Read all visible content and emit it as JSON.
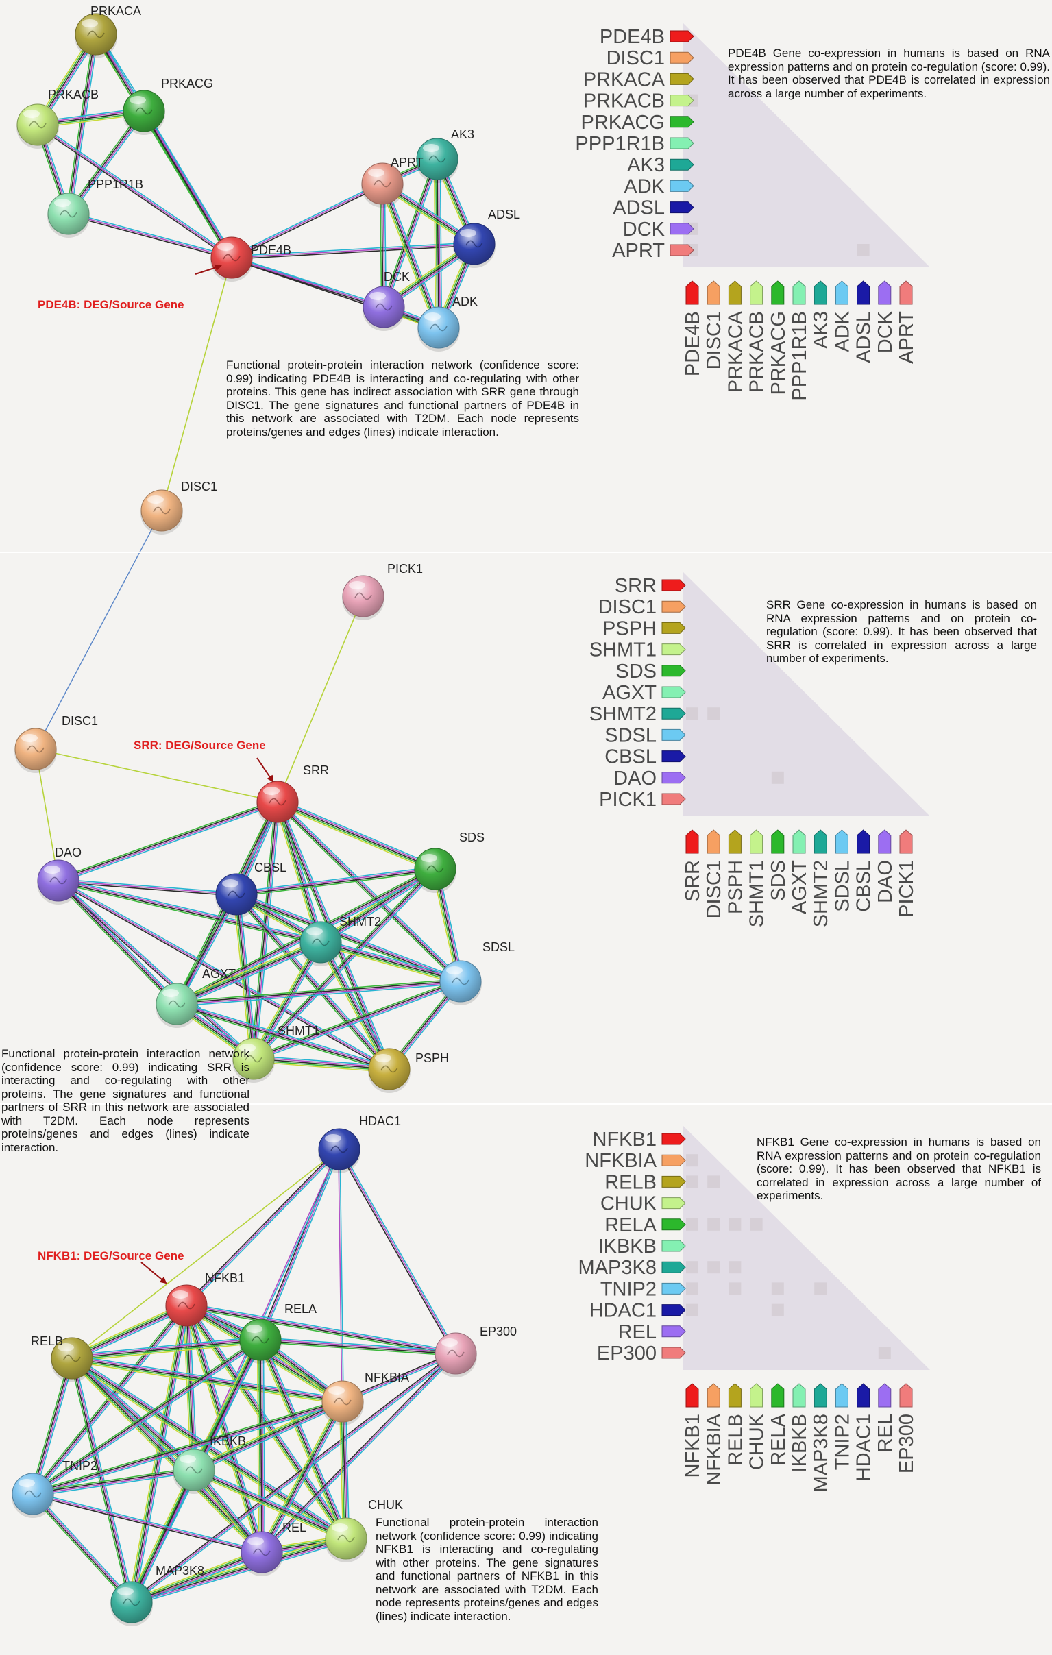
{
  "colors": {
    "background": "#f4f3f1",
    "matrix": "#e2dde6",
    "cell": "#d6cfd6",
    "callout": "#e01e1e"
  },
  "panels": [
    {
      "id": "pde4b",
      "network": {
        "nodes": [
          {
            "name": "PRKACA",
            "color": "#b0a640"
          },
          {
            "name": "PRKACB",
            "color": "#c2e67c"
          },
          {
            "name": "PRKACG",
            "color": "#3fae3f"
          },
          {
            "name": "PPP1R1B",
            "color": "#8ee0b0"
          },
          {
            "name": "PDE4B",
            "color": "#e84a4a"
          },
          {
            "name": "AK3",
            "color": "#3fb3a0"
          },
          {
            "name": "APRT",
            "color": "#e89a8a"
          },
          {
            "name": "ADSL",
            "color": "#3346b0"
          },
          {
            "name": "DCK",
            "color": "#9070e0"
          },
          {
            "name": "ADK",
            "color": "#7ec4ef"
          },
          {
            "name": "DISC1",
            "color": "#f0b482"
          }
        ],
        "callout": "PDE4B: DEG/Source Gene",
        "caption": "Functional protein-protein interaction network (confidence score: 0.99) indicating PDE4B is interacting and co-regulating with other proteins. This gene has indirect association with SRR gene through DISC1. The gene signatures and functional partners of PDE4B in this network are associated with T2DM. Each node represents proteins/genes and edges (lines) indicate interaction."
      },
      "matrix": {
        "genes": [
          {
            "name": "PDE4B",
            "color": "#ee1c1c"
          },
          {
            "name": "DISC1",
            "color": "#f6a062"
          },
          {
            "name": "PRKACA",
            "color": "#b4a41e"
          },
          {
            "name": "PRKACB",
            "color": "#c4f28c"
          },
          {
            "name": "PRKACG",
            "color": "#2cb82c"
          },
          {
            "name": "PPP1R1B",
            "color": "#84f0b2"
          },
          {
            "name": "AK3",
            "color": "#1ea896"
          },
          {
            "name": "ADK",
            "color": "#6ccaf2"
          },
          {
            "name": "ADSL",
            "color": "#1a1aa6"
          },
          {
            "name": "DCK",
            "color": "#9c6ef2"
          },
          {
            "name": "APRT",
            "color": "#f07c7c"
          }
        ],
        "caption": "PDE4B Gene co-expression in humans is based on RNA expression patterns and on protein co-regulation (score: 0.99). It has been observed that PDE4B is correlated in expression across a large number of experiments."
      }
    },
    {
      "id": "srr",
      "network": {
        "nodes": [
          {
            "name": "PICK1",
            "color": "#e8a4b8"
          },
          {
            "name": "DISC1",
            "color": "#f0b482"
          },
          {
            "name": "SRR",
            "color": "#e84a4a"
          },
          {
            "name": "DAO",
            "color": "#9070e0"
          },
          {
            "name": "CBSL",
            "color": "#3346b0"
          },
          {
            "name": "SDS",
            "color": "#3fae3f"
          },
          {
            "name": "SHMT2",
            "color": "#3fb3a0"
          },
          {
            "name": "SDSL",
            "color": "#7ec4ef"
          },
          {
            "name": "AGXT",
            "color": "#8ee0b0"
          },
          {
            "name": "SHMT1",
            "color": "#c2e67c"
          },
          {
            "name": "PSPH",
            "color": "#c8b040"
          }
        ],
        "callout": "SRR: DEG/Source Gene",
        "caption": "Functional protein-protein interaction network (confidence score: 0.99) indicating SRR is interacting and co-regulating with other proteins. The gene signatures and functional partners of SRR in this network are associated with T2DM. Each node represents proteins/genes and edges (lines) indicate interaction."
      },
      "matrix": {
        "genes": [
          {
            "name": "SRR",
            "color": "#ee1c1c"
          },
          {
            "name": "DISC1",
            "color": "#f6a062"
          },
          {
            "name": "PSPH",
            "color": "#b4a41e"
          },
          {
            "name": "SHMT1",
            "color": "#c4f28c"
          },
          {
            "name": "SDS",
            "color": "#2cb82c"
          },
          {
            "name": "AGXT",
            "color": "#84f0b2"
          },
          {
            "name": "SHMT2",
            "color": "#1ea896"
          },
          {
            "name": "SDSL",
            "color": "#6ccaf2"
          },
          {
            "name": "CBSL",
            "color": "#1a1aa6"
          },
          {
            "name": "DAO",
            "color": "#9c6ef2"
          },
          {
            "name": "PICK1",
            "color": "#f07c7c"
          }
        ],
        "caption": "SRR Gene co-expression in humans is based on RNA expression patterns and on protein co-regulation (score: 0.99). It has been observed that SRR is correlated in expression across a large number of experiments."
      }
    },
    {
      "id": "nfkb1",
      "network": {
        "nodes": [
          {
            "name": "HDAC1",
            "color": "#3346b0"
          },
          {
            "name": "NFKB1",
            "color": "#e84a4a"
          },
          {
            "name": "RELB",
            "color": "#b0a640"
          },
          {
            "name": "RELA",
            "color": "#3fae3f"
          },
          {
            "name": "EP300",
            "color": "#e8a4b8"
          },
          {
            "name": "NFKBIA",
            "color": "#f0b482"
          },
          {
            "name": "IKBKB",
            "color": "#8ee0b0"
          },
          {
            "name": "TNIP2",
            "color": "#7ec4ef"
          },
          {
            "name": "CHUK",
            "color": "#c2e67c"
          },
          {
            "name": "REL",
            "color": "#9070e0"
          },
          {
            "name": "MAP3K8",
            "color": "#3fb3a0"
          }
        ],
        "callout": "NFKB1: DEG/Source Gene",
        "caption": "Functional protein-protein interaction network (confidence score: 0.99) indicating NFKB1 is interacting and co-regulating with other proteins. The gene signatures and functional partners of NFKB1 in this network are associated with T2DM. Each node represents proteins/genes and edges (lines) indicate interaction."
      },
      "matrix": {
        "genes": [
          {
            "name": "NFKB1",
            "color": "#ee1c1c"
          },
          {
            "name": "NFKBIA",
            "color": "#f6a062"
          },
          {
            "name": "RELB",
            "color": "#b4a41e"
          },
          {
            "name": "CHUK",
            "color": "#c4f28c"
          },
          {
            "name": "RELA",
            "color": "#2cb82c"
          },
          {
            "name": "IKBKB",
            "color": "#84f0b2"
          },
          {
            "name": "MAP3K8",
            "color": "#1ea896"
          },
          {
            "name": "TNIP2",
            "color": "#6ccaf2"
          },
          {
            "name": "HDAC1",
            "color": "#1a1aa6"
          },
          {
            "name": "REL",
            "color": "#9c6ef2"
          },
          {
            "name": "EP300",
            "color": "#f07c7c"
          }
        ],
        "caption": "NFKB1 Gene co-expression in humans is based on RNA expression patterns and on protein co-regulation (score: 0.99). It has been observed that NFKB1 is correlated in expression across a large number of experiments."
      }
    }
  ]
}
